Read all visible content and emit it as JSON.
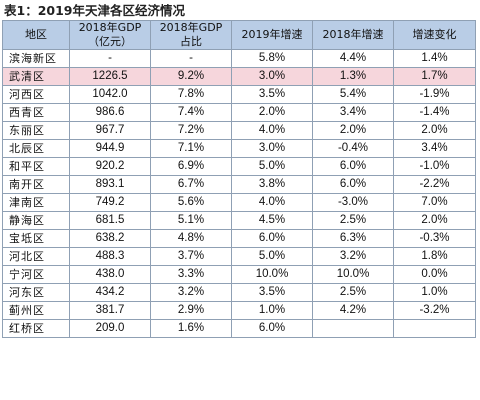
{
  "title": "表1：2019年天津各区经济情况",
  "headers": [
    {
      "l1": "地区",
      "l2": ""
    },
    {
      "l1": "2018年GDP",
      "l2": "（亿元）"
    },
    {
      "l1": "2018年GDP",
      "l2": "占比"
    },
    {
      "l1": "2019年增速",
      "l2": ""
    },
    {
      "l1": "2018年增速",
      "l2": ""
    },
    {
      "l1": "增速变化",
      "l2": ""
    }
  ],
  "rows": [
    {
      "district": "滨海新区",
      "gdp": "-",
      "share": "-",
      "g2019": "5.8%",
      "g2018": "4.4%",
      "change": "1.4%",
      "highlight": false
    },
    {
      "district": "武清区",
      "gdp": "1226.5",
      "share": "9.2%",
      "g2019": "3.0%",
      "g2018": "1.3%",
      "change": "1.7%",
      "highlight": true
    },
    {
      "district": "河西区",
      "gdp": "1042.0",
      "share": "7.8%",
      "g2019": "3.5%",
      "g2018": "5.4%",
      "change": "-1.9%",
      "highlight": false
    },
    {
      "district": "西青区",
      "gdp": "986.6",
      "share": "7.4%",
      "g2019": "2.0%",
      "g2018": "3.4%",
      "change": "-1.4%",
      "highlight": false
    },
    {
      "district": "东丽区",
      "gdp": "967.7",
      "share": "7.2%",
      "g2019": "4.0%",
      "g2018": "2.0%",
      "change": "2.0%",
      "highlight": false
    },
    {
      "district": "北辰区",
      "gdp": "944.9",
      "share": "7.1%",
      "g2019": "3.0%",
      "g2018": "-0.4%",
      "change": "3.4%",
      "highlight": false
    },
    {
      "district": "和平区",
      "gdp": "920.2",
      "share": "6.9%",
      "g2019": "5.0%",
      "g2018": "6.0%",
      "change": "-1.0%",
      "highlight": false
    },
    {
      "district": "南开区",
      "gdp": "893.1",
      "share": "6.7%",
      "g2019": "3.8%",
      "g2018": "6.0%",
      "change": "-2.2%",
      "highlight": false
    },
    {
      "district": "津南区",
      "gdp": "749.2",
      "share": "5.6%",
      "g2019": "4.0%",
      "g2018": "-3.0%",
      "change": "7.0%",
      "highlight": false
    },
    {
      "district": "静海区",
      "gdp": "681.5",
      "share": "5.1%",
      "g2019": "4.5%",
      "g2018": "2.5%",
      "change": "2.0%",
      "highlight": false
    },
    {
      "district": "宝坻区",
      "gdp": "638.2",
      "share": "4.8%",
      "g2019": "6.0%",
      "g2018": "6.3%",
      "change": "-0.3%",
      "highlight": false
    },
    {
      "district": "河北区",
      "gdp": "488.3",
      "share": "3.7%",
      "g2019": "5.0%",
      "g2018": "3.2%",
      "change": "1.8%",
      "highlight": false
    },
    {
      "district": "宁河区",
      "gdp": "438.0",
      "share": "3.3%",
      "g2019": "10.0%",
      "g2018": "10.0%",
      "change": "0.0%",
      "highlight": false
    },
    {
      "district": "河东区",
      "gdp": "434.2",
      "share": "3.2%",
      "g2019": "3.5%",
      "g2018": "2.5%",
      "change": "1.0%",
      "highlight": false
    },
    {
      "district": "蓟州区",
      "gdp": "381.7",
      "share": "2.9%",
      "g2019": "1.0%",
      "g2018": "4.2%",
      "change": "-3.2%",
      "highlight": false
    },
    {
      "district": "红桥区",
      "gdp": "209.0",
      "share": "1.6%",
      "g2019": "6.0%",
      "g2018": "",
      "change": "",
      "highlight": false
    }
  ]
}
